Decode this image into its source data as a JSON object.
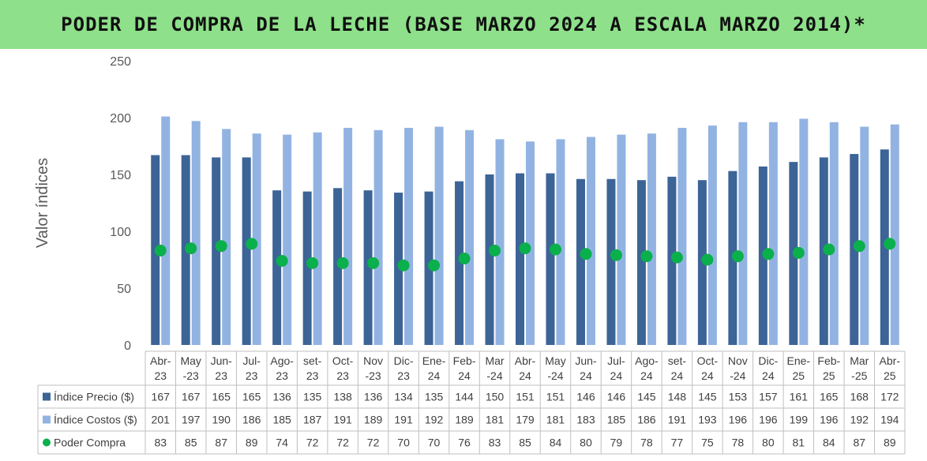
{
  "header": {
    "title": "PODER DE COMPRA DE LA LECHE (BASE MARZO 2024 A ESCALA MARZO 2014)*"
  },
  "chart_data": {
    "type": "bar",
    "title": "PODER DE COMPRA DE LA LECHE (BASE MARZO 2024 A ESCALA MARZO 2014)*",
    "xlabel": "",
    "ylabel": "Valor índices",
    "ylim": [
      0,
      250
    ],
    "yticks": [
      0,
      50,
      100,
      150,
      200,
      250
    ],
    "grid": false,
    "legend": "data-table",
    "categories": [
      [
        "Abr-",
        "23"
      ],
      [
        "May",
        "-23"
      ],
      [
        "Jun-",
        "23"
      ],
      [
        "Jul-",
        "23"
      ],
      [
        "Ago-",
        "23"
      ],
      [
        "set-",
        "23"
      ],
      [
        "Oct-",
        "23"
      ],
      [
        "Nov",
        "-23"
      ],
      [
        "Dic-",
        "23"
      ],
      [
        "Ene-",
        "24"
      ],
      [
        "Feb-",
        "24"
      ],
      [
        "Mar",
        "-24"
      ],
      [
        "Abr-",
        "24"
      ],
      [
        "May",
        "-24"
      ],
      [
        "Jun-",
        "24"
      ],
      [
        "Jul-",
        "24"
      ],
      [
        "Ago-",
        "24"
      ],
      [
        "set-",
        "24"
      ],
      [
        "Oct-",
        "24"
      ],
      [
        "Nov",
        "-24"
      ],
      [
        "Dic-",
        "24"
      ],
      [
        "Ene-",
        "25"
      ],
      [
        "Feb-",
        "25"
      ],
      [
        "Mar",
        "-25"
      ],
      [
        "Abr-",
        "25"
      ]
    ],
    "series": [
      {
        "name": "Índice Precio ($)",
        "type": "bar",
        "color": "#3c6496",
        "values": [
          167,
          167,
          165,
          165,
          136,
          135,
          138,
          136,
          134,
          135,
          144,
          150,
          151,
          151,
          146,
          146,
          145,
          148,
          145,
          153,
          157,
          161,
          165,
          168,
          172
        ]
      },
      {
        "name": "Índice Costos ($)",
        "type": "bar",
        "color": "#92b3e2",
        "values": [
          201,
          197,
          190,
          186,
          185,
          187,
          191,
          189,
          191,
          192,
          189,
          181,
          179,
          181,
          183,
          185,
          186,
          191,
          193,
          196,
          196,
          199,
          196,
          192,
          194
        ]
      },
      {
        "name": "Poder Compra",
        "type": "scatter",
        "color": "#0ab04b",
        "values": [
          83,
          85,
          87,
          89,
          74,
          72,
          72,
          72,
          70,
          70,
          76,
          83,
          85,
          84,
          80,
          79,
          78,
          77,
          75,
          78,
          80,
          81,
          84,
          87,
          89
        ]
      }
    ]
  }
}
